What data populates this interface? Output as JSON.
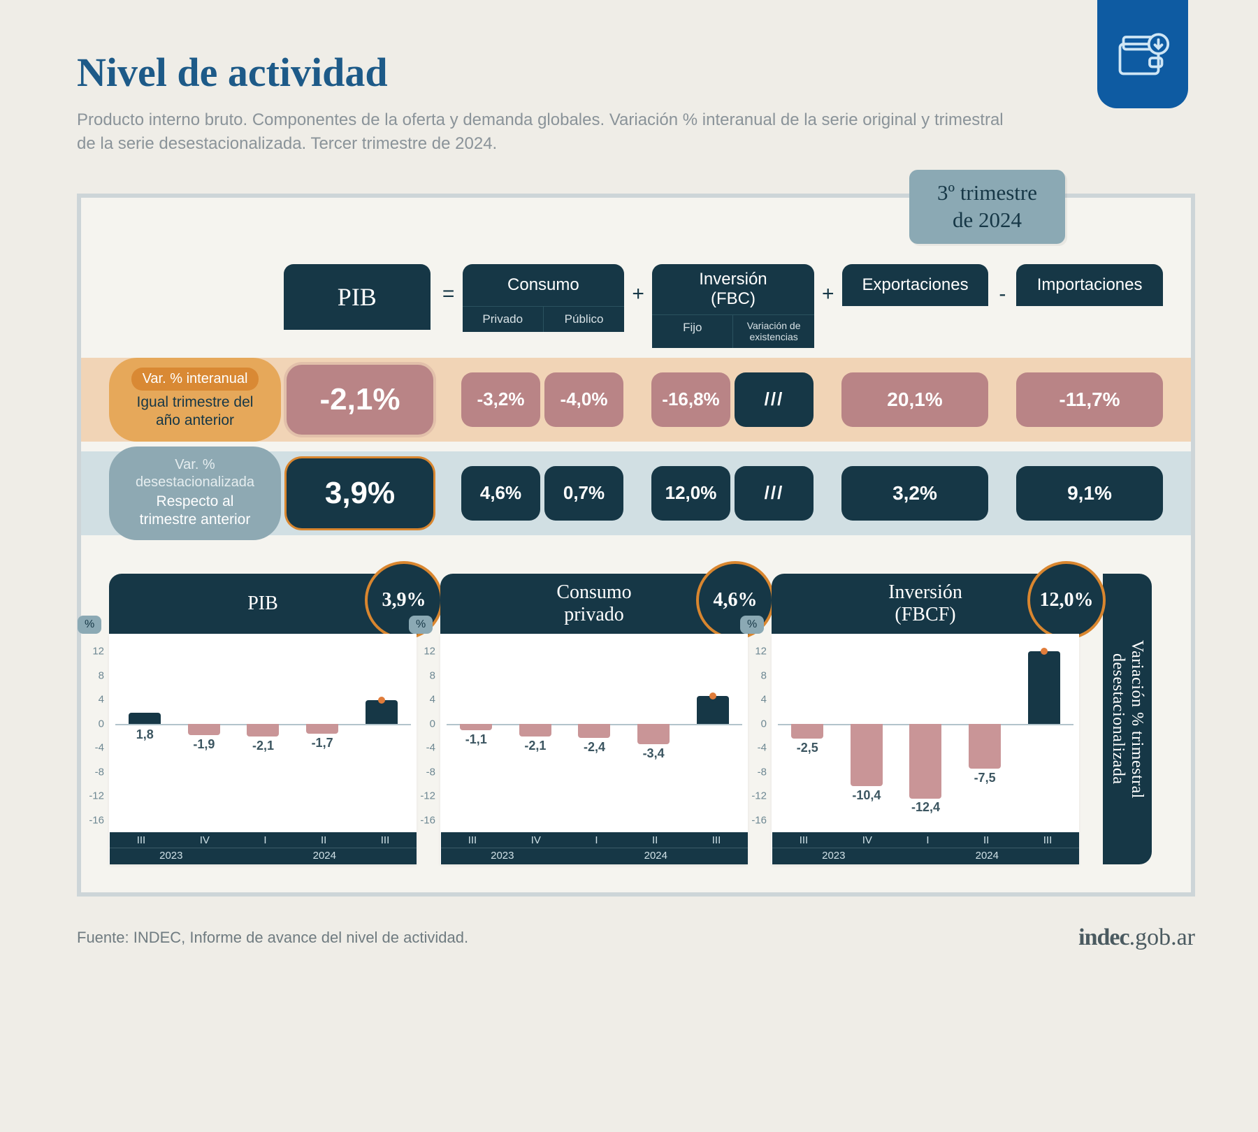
{
  "title": "Nivel de actividad",
  "subtitle": "Producto interno bruto. Componentes de la oferta y demanda globales. Variación % interanual de la serie original y trimestral de la serie desestacionalizada. Tercer trimestre de 2024.",
  "period_tag": "3º trimestre\nde 2024",
  "equation": {
    "pib": "PIB",
    "consumo": "Consumo",
    "consumo_sub": [
      "Privado",
      "Público"
    ],
    "inversion": "Inversión\n(FBC)",
    "inversion_sub": [
      "Fijo",
      "Variación de\nexistencias"
    ],
    "exportaciones": "Exportaciones",
    "importaciones": "Importaciones",
    "ops": [
      "=",
      "+",
      "+",
      "-"
    ]
  },
  "rows": {
    "interanual": {
      "tag": "Var. % interanual",
      "desc": "Igual trimestre del año anterior",
      "band_color": "#f0ceab",
      "box_color": "#b98486",
      "pib": "-2,1%",
      "consumo": [
        "-3,2%",
        "-4,0%"
      ],
      "inversion": [
        "-16,8%",
        "///"
      ],
      "export": "20,1%",
      "import": "-11,7%"
    },
    "desest": {
      "tag": "Var. % desestacionalizada",
      "desc": "Respecto al trimestre anterior",
      "band_color": "#cadbe1",
      "box_color": "#163746",
      "pib": "3,9%",
      "consumo": [
        "4,6%",
        "0,7%"
      ],
      "inversion": [
        "12,0%",
        "///"
      ],
      "export": "3,2%",
      "import": "9,1%"
    }
  },
  "charts": {
    "y_ticks": [
      12,
      8,
      4,
      0,
      -4,
      -8,
      -12,
      -16
    ],
    "y_range": [
      -18,
      14
    ],
    "x_ticks": [
      "III",
      "IV",
      "I",
      "II",
      "III"
    ],
    "x_years": [
      "2023",
      "2024"
    ],
    "x_year_spans": [
      2,
      3
    ],
    "pct_symbol": "%",
    "neg_color": "#c99597",
    "pos_color": "#163746",
    "series": [
      {
        "title": "PIB",
        "bubble": "3,9%",
        "values": [
          1.8,
          -1.9,
          -2.1,
          -1.7,
          3.9
        ],
        "labels": [
          "1,8",
          "-1,9",
          "-2,1",
          "-1,7",
          ""
        ]
      },
      {
        "title": "Consumo\nprivado",
        "bubble": "4,6%",
        "values": [
          -1.1,
          -2.1,
          -2.4,
          -3.4,
          4.6
        ],
        "labels": [
          "-1,1",
          "-2,1",
          "-2,4",
          "-3,4",
          ""
        ]
      },
      {
        "title": "Inversión\n(FBCF)",
        "bubble": "12,0%",
        "values": [
          -2.5,
          -10.4,
          -12.4,
          -7.5,
          12.0
        ],
        "labels": [
          "-2,5",
          "-10,4",
          "-12,4",
          "-7,5",
          ""
        ]
      }
    ],
    "side_label": "Variación % trimestral desestacionalizada"
  },
  "footer_source": "Fuente: INDEC, Informe de avance del nivel de actividad.",
  "brand_bold": "indec",
  "brand_rest": ".gob.ar"
}
